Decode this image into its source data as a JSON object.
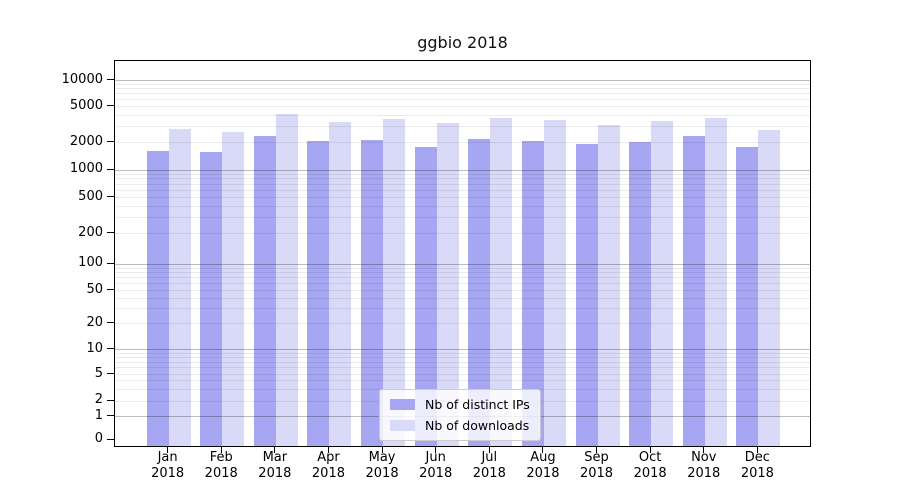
{
  "chart_data": {
    "type": "bar",
    "title": "ggbio 2018",
    "yscale": "symlog",
    "grid": {
      "major": true,
      "minor": true
    },
    "legend_position": "inside-bottom-center",
    "categories": [
      "Jan 2018",
      "Feb 2018",
      "Mar 2018",
      "Apr 2018",
      "May 2018",
      "Jun 2018",
      "Jul 2018",
      "Aug 2018",
      "Sep 2018",
      "Oct 2018",
      "Nov 2018",
      "Dec 2018"
    ],
    "series": [
      {
        "name": "Nb of distinct IPs",
        "color": "#a6a6f2",
        "values": [
          1520,
          1490,
          2260,
          1960,
          2010,
          1690,
          2080,
          1990,
          1830,
          1940,
          2260,
          1710
        ]
      },
      {
        "name": "Nb of downloads",
        "color": "#d9d9f8",
        "values": [
          2650,
          2460,
          3930,
          3230,
          3460,
          3120,
          3550,
          3400,
          2970,
          3310,
          3520,
          2610
        ]
      }
    ],
    "yticks": [
      0,
      1,
      2,
      5,
      10,
      20,
      50,
      100,
      200,
      500,
      1000,
      2000,
      5000,
      10000
    ],
    "ylim": [
      0,
      17000
    ]
  },
  "colors": {
    "grid_major": "rgba(0,0,0,0.26)",
    "grid_minor": "rgba(0,0,0,0.08)",
    "spine": "#000000",
    "background": "#ffffff"
  }
}
